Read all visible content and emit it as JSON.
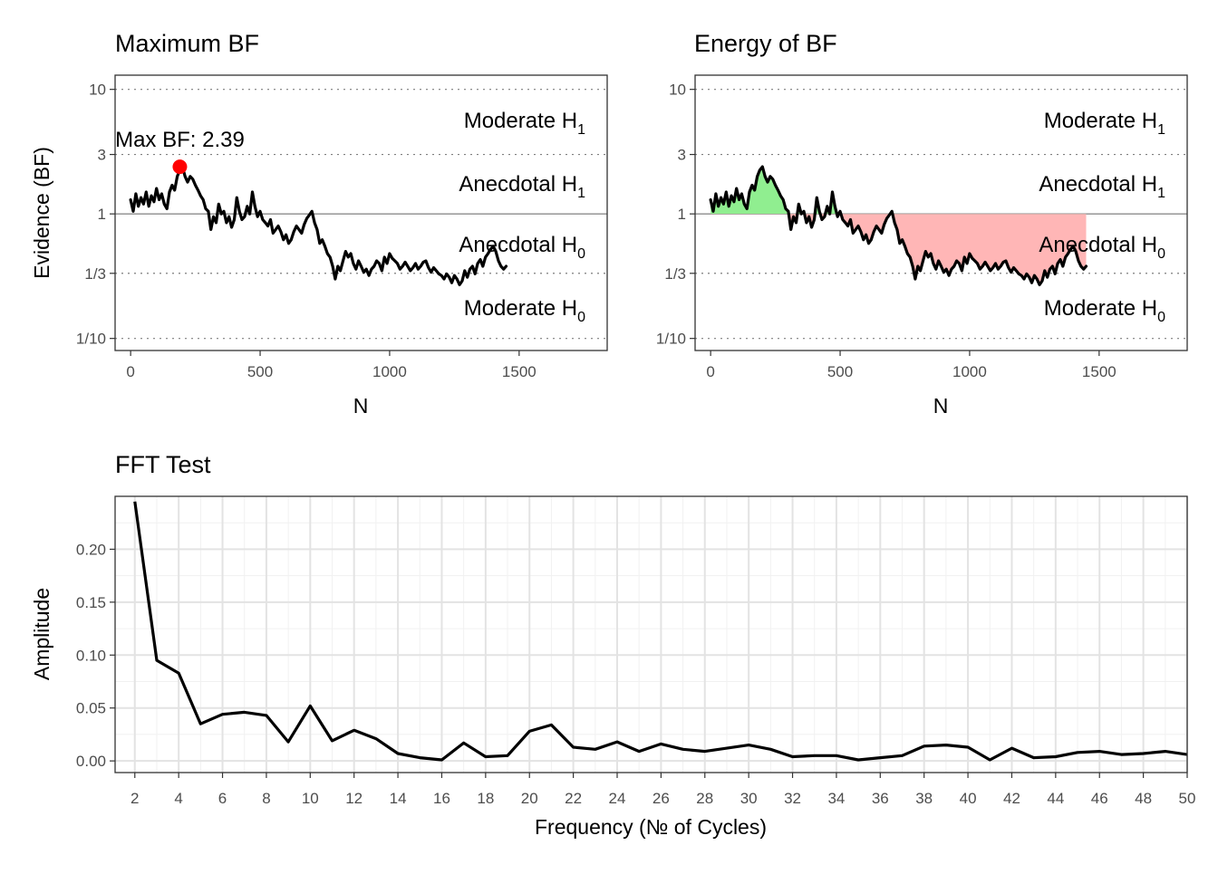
{
  "chart_data": [
    {
      "type": "line",
      "title": "Maximum BF",
      "xlabel": "N",
      "ylabel": "Evidence (BF)",
      "scale_y": "log",
      "xlim": [
        -60,
        1840
      ],
      "ylim": [
        0.08,
        13
      ],
      "x_ticks": [
        0,
        500,
        1000,
        1500
      ],
      "x_tick_labels": [
        "0",
        "500",
        "1000",
        "1500"
      ],
      "y_ticks": [
        10,
        3,
        1,
        0.3333,
        0.1
      ],
      "y_tick_labels": [
        "10",
        "3",
        "1",
        "1/3",
        "1/10"
      ],
      "zones": [
        {
          "text": "Moderate H",
          "sub": "1"
        },
        {
          "text": "Anecdotal H",
          "sub": "1"
        },
        {
          "text": "Anecdotal H",
          "sub": "0"
        },
        {
          "text": "Moderate H",
          "sub": "0"
        }
      ],
      "max_label": "Max BF: 2.39",
      "max_point": {
        "x": 190,
        "y": 2.39,
        "color": "#ff0000"
      },
      "line_color": "#000000",
      "grid": false,
      "series": [
        {
          "x": [
            0,
            10,
            20,
            30,
            40,
            50,
            60,
            70,
            80,
            90,
            100,
            110,
            120,
            130,
            140,
            150,
            160,
            170,
            180,
            190,
            200,
            210,
            220,
            230,
            240,
            250,
            260,
            270,
            280,
            290,
            300,
            310,
            320,
            330,
            340,
            350,
            360,
            370,
            380,
            390,
            400,
            410,
            420,
            430,
            440,
            450,
            460,
            470,
            480,
            490,
            500,
            510,
            520,
            530,
            540,
            550,
            560,
            570,
            580,
            590,
            600,
            610,
            620,
            630,
            640,
            650,
            660,
            670,
            680,
            690,
            700,
            710,
            720,
            730,
            740,
            750,
            760,
            770,
            780,
            790,
            800,
            810,
            820,
            830,
            840,
            850,
            860,
            870,
            880,
            890,
            900,
            910,
            920,
            930,
            940,
            950,
            960,
            970,
            980,
            990,
            1000,
            1010,
            1020,
            1030,
            1040,
            1050,
            1060,
            1070,
            1080,
            1090,
            1100,
            1110,
            1120,
            1130,
            1140,
            1150,
            1160,
            1170,
            1180,
            1190,
            1200,
            1210,
            1220,
            1230,
            1240,
            1250,
            1260,
            1270,
            1280,
            1290,
            1300,
            1310,
            1320,
            1330,
            1340,
            1350,
            1360,
            1370,
            1380,
            1390,
            1400,
            1410,
            1420,
            1430,
            1440,
            1450
          ],
          "y": [
            1.3,
            1.05,
            1.45,
            1.15,
            1.35,
            1.2,
            1.5,
            1.15,
            1.4,
            1.25,
            1.6,
            1.3,
            1.45,
            1.2,
            1.1,
            1.5,
            1.7,
            1.55,
            2.0,
            2.25,
            2.39,
            2.0,
            1.8,
            2.0,
            1.9,
            1.7,
            1.55,
            1.4,
            1.3,
            1.1,
            1.05,
            0.75,
            0.95,
            0.85,
            1.2,
            1.0,
            1.05,
            0.85,
            0.95,
            0.78,
            0.9,
            1.35,
            1.05,
            0.9,
            0.95,
            1.15,
            1.0,
            1.5,
            1.15,
            0.95,
            1.05,
            0.9,
            0.85,
            0.8,
            0.9,
            0.7,
            0.75,
            0.8,
            0.72,
            0.62,
            0.68,
            0.58,
            0.62,
            0.72,
            0.8,
            0.75,
            0.7,
            0.82,
            0.92,
            0.98,
            1.05,
            0.85,
            0.75,
            0.58,
            0.62,
            0.55,
            0.48,
            0.45,
            0.38,
            0.3,
            0.38,
            0.35,
            0.42,
            0.5,
            0.45,
            0.48,
            0.4,
            0.36,
            0.42,
            0.38,
            0.34,
            0.36,
            0.32,
            0.36,
            0.38,
            0.42,
            0.4,
            0.35,
            0.45,
            0.4,
            0.48,
            0.44,
            0.42,
            0.4,
            0.36,
            0.38,
            0.41,
            0.38,
            0.35,
            0.37,
            0.4,
            0.36,
            0.38,
            0.41,
            0.42,
            0.37,
            0.34,
            0.37,
            0.35,
            0.33,
            0.32,
            0.3,
            0.33,
            0.31,
            0.28,
            0.32,
            0.3,
            0.27,
            0.29,
            0.35,
            0.31,
            0.36,
            0.38,
            0.33,
            0.4,
            0.43,
            0.38,
            0.45,
            0.48,
            0.52,
            0.55,
            0.5,
            0.42,
            0.38,
            0.36,
            0.38
          ]
        }
      ]
    },
    {
      "type": "area",
      "title": "Energy of BF",
      "xlabel": "N",
      "ylabel": "",
      "scale_y": "log",
      "xlim": [
        -60,
        1840
      ],
      "ylim": [
        0.08,
        13
      ],
      "x_ticks": [
        0,
        500,
        1000,
        1500
      ],
      "x_tick_labels": [
        "0",
        "500",
        "1000",
        "1500"
      ],
      "y_ticks": [
        10,
        3,
        1,
        0.3333,
        0.1
      ],
      "y_tick_labels": [
        "10",
        "3",
        "1",
        "1/3",
        "1/10"
      ],
      "zones": [
        {
          "text": "Moderate H",
          "sub": "1"
        },
        {
          "text": "Anecdotal H",
          "sub": "1"
        },
        {
          "text": "Anecdotal H",
          "sub": "0"
        },
        {
          "text": "Moderate H",
          "sub": "0"
        }
      ],
      "fill_above_color": "#90ee90",
      "fill_below_color": "#ffb6b6",
      "line_color": "#000000",
      "grid": false
    },
    {
      "type": "line",
      "title": "FFT Test",
      "xlabel": "Frequency (№ of Cycles)",
      "ylabel": "Amplitude",
      "xlim": [
        1.1,
        50
      ],
      "ylim": [
        -0.011,
        0.25
      ],
      "x_ticks": [
        2,
        4,
        6,
        8,
        10,
        12,
        14,
        16,
        18,
        20,
        22,
        24,
        26,
        28,
        30,
        32,
        34,
        36,
        38,
        40,
        42,
        44,
        46,
        48,
        50
      ],
      "y_ticks": [
        0,
        0.05,
        0.1,
        0.15,
        0.2
      ],
      "y_tick_labels": [
        "0.00",
        "0.05",
        "0.10",
        "0.15",
        "0.20"
      ],
      "grid": true,
      "line_color": "#000000",
      "series": [
        {
          "x": [
            2,
            3,
            4,
            5,
            6,
            7,
            8,
            9,
            10,
            11,
            12,
            13,
            14,
            15,
            16,
            17,
            18,
            19,
            20,
            21,
            22,
            23,
            24,
            25,
            26,
            27,
            28,
            29,
            30,
            31,
            32,
            33,
            34,
            35,
            36,
            37,
            38,
            39,
            40,
            41,
            42,
            43,
            44,
            45,
            46,
            47,
            48,
            49,
            50
          ],
          "y": [
            0.245,
            0.095,
            0.083,
            0.035,
            0.044,
            0.046,
            0.043,
            0.018,
            0.052,
            0.019,
            0.029,
            0.021,
            0.007,
            0.003,
            0.001,
            0.017,
            0.004,
            0.005,
            0.028,
            0.034,
            0.013,
            0.011,
            0.018,
            0.009,
            0.016,
            0.011,
            0.009,
            0.012,
            0.015,
            0.011,
            0.004,
            0.005,
            0.005,
            0.001,
            0.003,
            0.005,
            0.014,
            0.015,
            0.013,
            0.001,
            0.012,
            0.003,
            0.004,
            0.008,
            0.009,
            0.006,
            0.007,
            0.009,
            0.006
          ]
        }
      ]
    }
  ]
}
